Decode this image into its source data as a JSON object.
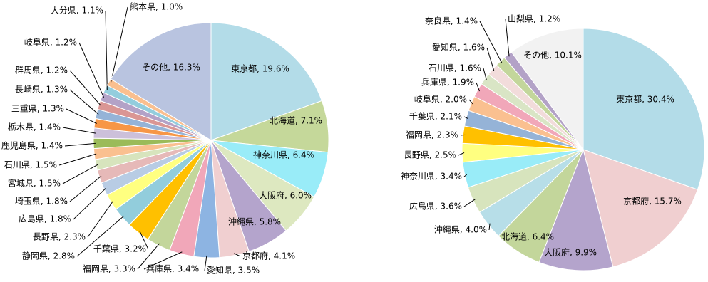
{
  "chart_data": [
    {
      "type": "pie",
      "labels": [
        "東京都, 19.6%",
        "北海道, 7.1%",
        "神奈川県, 6.4%",
        "大阪府, 6.0%",
        "沖縄県, 5.8%",
        "京都府, 4.1%",
        "愛知県, 3.5%",
        "兵庫県, 3.4%",
        "福岡県, 3.3%",
        "千葉県, 3.2%",
        "静岡県, 2.8%",
        "長野県, 2.3%",
        "広島県, 1.8%",
        "埼玉県, 1.8%",
        "宮城県, 1.5%",
        "石川県, 1.5%",
        "鹿児島県, 1.4%",
        "栃木県, 1.4%",
        "三重県, 1.3%",
        "長崎県, 1.3%",
        "群馬県, 1.2%",
        "岐阜県, 1.2%",
        "大分県, 1.1%",
        "熊本県, 1.0%",
        "その他, 16.3%"
      ],
      "values": [
        19.6,
        7.1,
        6.4,
        6.0,
        5.8,
        4.1,
        3.5,
        3.4,
        3.3,
        3.2,
        2.8,
        2.3,
        1.8,
        1.8,
        1.5,
        1.5,
        1.4,
        1.4,
        1.3,
        1.3,
        1.2,
        1.2,
        1.1,
        1.0,
        16.3
      ],
      "colors": [
        "#b3dce8",
        "#c5d89a",
        "#99ecf8",
        "#dde8c0",
        "#b4a4cc",
        "#f0cfd0",
        "#8db4e2",
        "#f1a7b9",
        "#c3d69b",
        "#ffc000",
        "#92cddc",
        "#ffff80",
        "#b8cce4",
        "#e6b9b8",
        "#d7e4bd",
        "#fac090",
        "#9bbb59",
        "#ccc0da",
        "#f79646",
        "#95b3d7",
        "#da9694",
        "#b3a2c7",
        "#93cddd",
        "#fabf8f",
        "#b9c4e0"
      ]
    },
    {
      "type": "pie",
      "labels": [
        "東京都, 30.4%",
        "京都府, 15.7%",
        "大阪府, 9.9%",
        "北海道, 6.4%",
        "沖縄県, 4.0%",
        "広島県, 3.6%",
        "神奈川県, 3.4%",
        "長野県, 2.5%",
        "福岡県, 2.3%",
        "千葉県, 2.1%",
        "岐阜県, 2.0%",
        "兵庫県, 1.9%",
        "石川県, 1.6%",
        "愛知県, 1.6%",
        "奈良県, 1.4%",
        "山梨県, 1.2%",
        "その他, 10.1%"
      ],
      "values": [
        30.4,
        15.7,
        9.9,
        6.4,
        4.0,
        3.6,
        3.4,
        2.5,
        2.3,
        2.1,
        2.0,
        1.9,
        1.6,
        1.6,
        1.4,
        1.2,
        10.1
      ],
      "colors": [
        "#b3dce8",
        "#f0cfd0",
        "#b4a4cc",
        "#c3d69b",
        "#b7dee8",
        "#d7e4bd",
        "#99ecf8",
        "#ffff80",
        "#ffc000",
        "#95b3d7",
        "#fac090",
        "#f1a7b9",
        "#d9e5c5",
        "#f2dcdb",
        "#c3d69b",
        "#b3a2c7",
        "#f2f2f2"
      ]
    }
  ]
}
